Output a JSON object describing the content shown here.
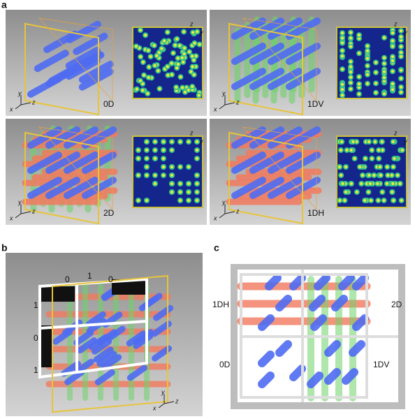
{
  "panels": {
    "a": {
      "label": "a",
      "cells": [
        {
          "label": "0D"
        },
        {
          "label": "1DV"
        },
        {
          "label": "2D"
        },
        {
          "label": "1DH"
        }
      ],
      "axes": {
        "x": "x",
        "y": "y",
        "z": "z"
      }
    },
    "b": {
      "label": "b",
      "top": [
        "0",
        "1",
        "0"
      ],
      "left": [
        "1",
        "0",
        "1"
      ],
      "axes": {
        "x": "x",
        "y": "y",
        "z": "z"
      }
    },
    "c": {
      "label": "c",
      "quadrants": [
        "1DH",
        "2D",
        "0D",
        "1DV"
      ]
    }
  }
}
